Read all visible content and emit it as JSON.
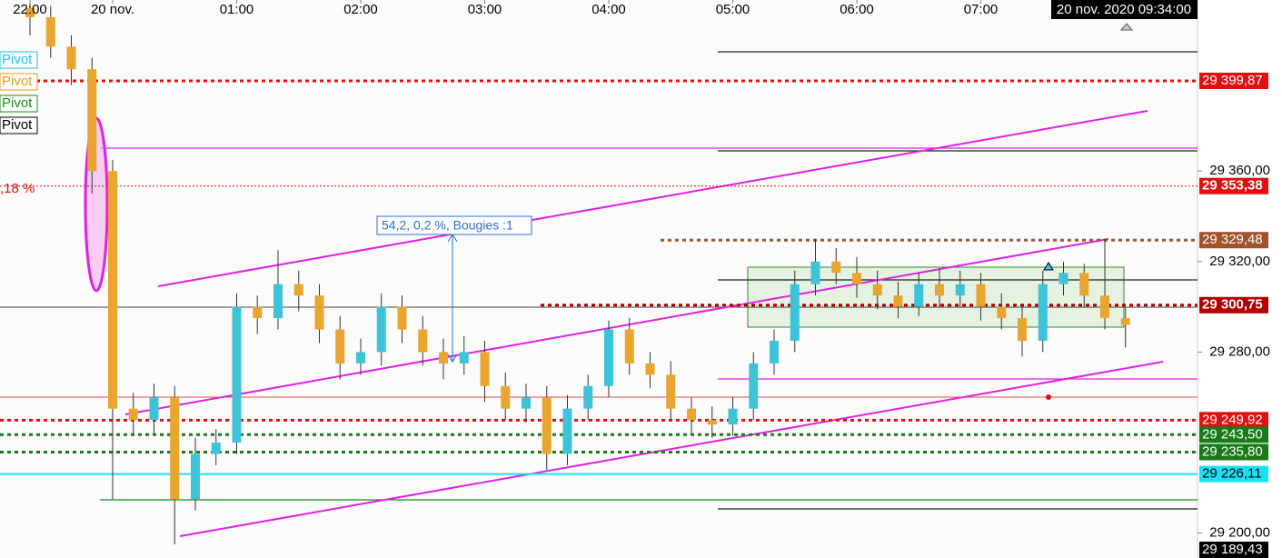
{
  "chart_data": {
    "type": "candlestick",
    "crosshair_label": "20 nov. 2020 09:34:00",
    "annotation": "54,2, 0,2 %, Bougies :1",
    "left_labels": [
      {
        "text": "Pivot",
        "color": "#19c6e6"
      },
      {
        "text": "Pivot",
        "color": "#e89a1a"
      },
      {
        "text": "Pivot",
        "color": "#1a8a1a"
      },
      {
        "text": "Pivot",
        "color": "#000000"
      }
    ],
    "fib_label": ",18 %",
    "up_color": "#3cc3d8",
    "down_color": "#e8a530",
    "categories": [
      "22:00",
      null,
      null,
      null,
      "20 nov.",
      null,
      null,
      null,
      null,
      null,
      "01:00",
      null,
      null,
      null,
      null,
      null,
      "02:00",
      null,
      null,
      null,
      null,
      null,
      "03:00",
      null,
      null,
      null,
      null,
      null,
      "04:00",
      null,
      null,
      null,
      null,
      null,
      "05:00",
      null,
      null,
      null,
      null,
      null,
      "06:00",
      null,
      null,
      null,
      null,
      null,
      "07:00",
      null,
      null,
      null,
      null,
      null,
      null,
      null
    ],
    "open": [
      29432,
      29428,
      29415,
      29405,
      29360,
      29255,
      29250,
      29260,
      29215,
      29235,
      29240,
      29300,
      29295,
      29310,
      29305,
      29290,
      29275,
      29280,
      29300,
      29290,
      29280,
      29275,
      29280,
      29265,
      29255,
      29260,
      29235,
      29255,
      29265,
      29290,
      29275,
      29270,
      29255,
      29250,
      29248,
      29255,
      29275,
      29285,
      29310,
      29320,
      29315,
      29310,
      29305,
      29300,
      29310,
      29305,
      29310,
      29300,
      29295,
      29285,
      29310,
      29315,
      29305,
      29295
    ],
    "high": [
      29437,
      29433,
      29420,
      29410,
      29365,
      29262,
      29266,
      29265,
      29242,
      29246,
      29306,
      29305,
      29325,
      29316,
      29310,
      29296,
      29286,
      29306,
      29305,
      29296,
      29286,
      29287,
      29285,
      29271,
      29266,
      29265,
      29261,
      29270,
      29294,
      29295,
      29280,
      29276,
      29260,
      29256,
      29260,
      29280,
      29290,
      29316,
      29330,
      29326,
      29322,
      29316,
      29311,
      29315,
      29317,
      29316,
      29315,
      29306,
      29300,
      29316,
      29320,
      29319,
      29330,
      29300
    ],
    "low": [
      29420,
      29410,
      29398,
      29350,
      29215,
      29244,
      29244,
      29195,
      29210,
      29230,
      29235,
      29288,
      29290,
      29298,
      29284,
      29268,
      29270,
      29274,
      29284,
      29274,
      29268,
      29270,
      29258,
      29250,
      29249,
      29228,
      29230,
      29250,
      29260,
      29270,
      29264,
      29250,
      29244,
      29242,
      29243,
      29250,
      29270,
      29280,
      29305,
      29310,
      29304,
      29299,
      29295,
      29296,
      29300,
      29300,
      29294,
      29290,
      29278,
      29280,
      29305,
      29300,
      29290,
      29282
    ],
    "close": [
      29428,
      29415,
      29405,
      29360,
      29255,
      29250,
      29260,
      29215,
      29235,
      29240,
      29300,
      29295,
      29310,
      29305,
      29290,
      29275,
      29280,
      29300,
      29290,
      29280,
      29275,
      29280,
      29265,
      29255,
      29260,
      29235,
      29255,
      29265,
      29290,
      29275,
      29270,
      29255,
      29250,
      29248,
      29255,
      29275,
      29285,
      29310,
      29320,
      29315,
      29310,
      29305,
      29300,
      29310,
      29305,
      29310,
      29300,
      29295,
      29285,
      29310,
      29315,
      29305,
      29295,
      29292
    ],
    "ylim": [
      29189,
      29435.6
    ],
    "yticks": [
      {
        "value": 29360,
        "label": "29 360,00"
      },
      {
        "value": 29320,
        "label": "29 320,00"
      },
      {
        "value": 29280,
        "label": "29 280,00"
      },
      {
        "value": 29200,
        "label": "29 200,00"
      }
    ],
    "levels": [
      {
        "value": 29399.87,
        "label": "29 399,87",
        "color": "#e01010",
        "text_color": "#ffffff"
      },
      {
        "value": 29353.38,
        "label": "29 353,38",
        "color": "#e01010",
        "text_color": "#ffffff"
      },
      {
        "value": 29329.48,
        "label": "29 329,48",
        "color": "#a0522d",
        "text_color": "#ffffff"
      },
      {
        "value": 29300.75,
        "label": "29 300,75",
        "color": "#b00000",
        "text_color": "#ffffff"
      },
      {
        "value": 29249.92,
        "label": "29 249,92",
        "color": "#e01010",
        "text_color": "#ffffff"
      },
      {
        "value": 29243.5,
        "label": "29 243,50",
        "color": "#1a7a1a",
        "text_color": "#ffffff"
      },
      {
        "value": 29235.8,
        "label": "29 235,80",
        "color": "#1a7a1a",
        "text_color": "#ffffff"
      },
      {
        "value": 29226.11,
        "label": "29 226,11",
        "color": "#19e0f5",
        "text_color": "#000000"
      },
      {
        "value": 29189.43,
        "label": "29 189,43",
        "color": "#000000",
        "text_color": "#ffffff"
      }
    ]
  }
}
